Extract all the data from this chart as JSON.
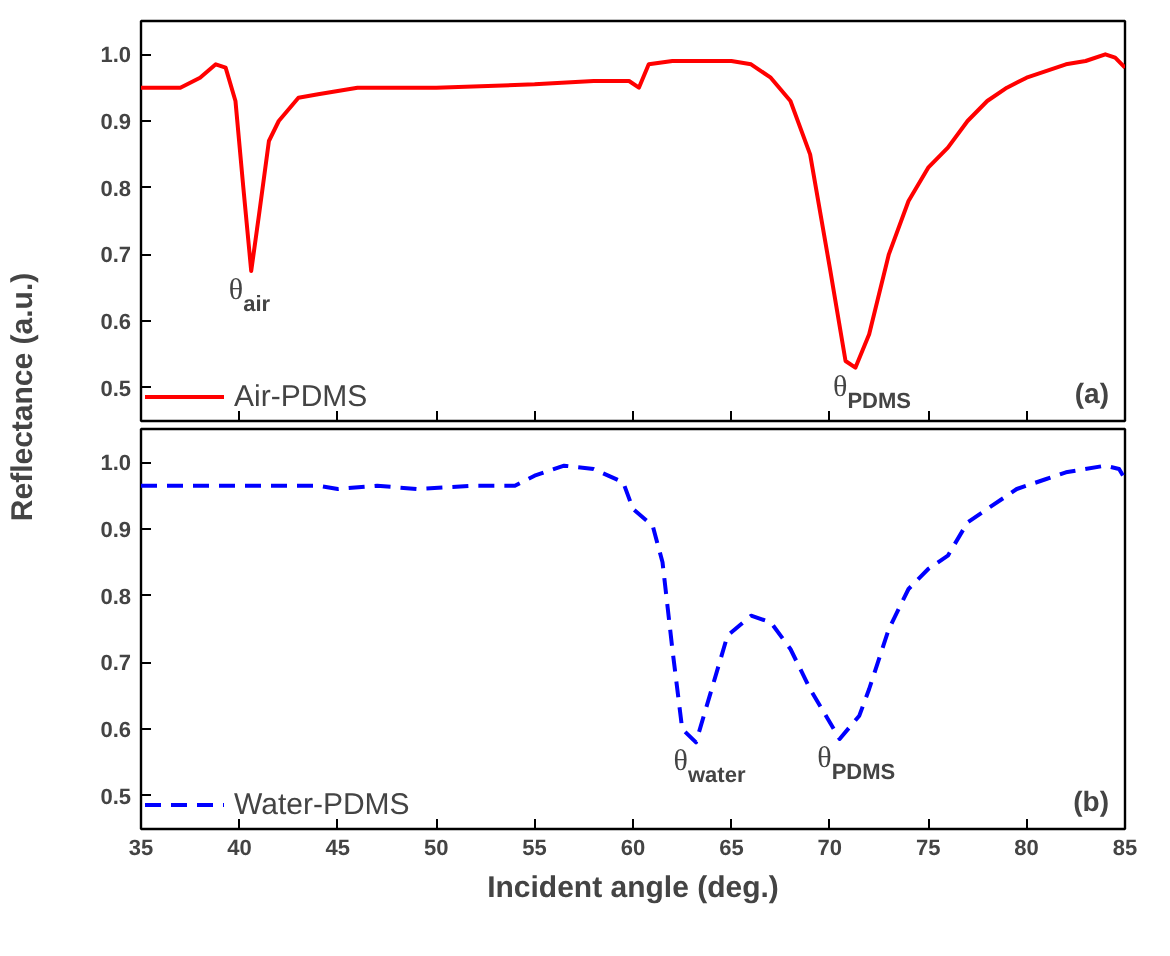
{
  "chart_data": [
    {
      "type": "line",
      "ylabel": "Reflectance (a.u.)",
      "xlim": [
        35,
        85
      ],
      "xticks": [
        35,
        40,
        45,
        50,
        55,
        60,
        65,
        70,
        75,
        80,
        85
      ],
      "ylim": [
        0.45,
        1.05
      ],
      "yticks": [
        0.5,
        0.6,
        0.7,
        0.8,
        0.9,
        {
          "value": 1,
          "label": "1.0"
        }
      ],
      "tick_labels": "y",
      "legend": "bottom left",
      "grid": false,
      "line_style": "solid",
      "annotations": [
        {
          "text": "θ$_{air}$",
          "x": 40.6,
          "y": 0.675
        },
        {
          "text": "θ$_{PDMS}$",
          "x": 71.3,
          "y": 0.53
        },
        "(a)"
      ],
      "series": [
        {
          "name": "Air-PDMS",
          "color": "#ff0000",
          "x": [
            35,
            37,
            38,
            38.8,
            39.3,
            39.8,
            40.2,
            40.6,
            41,
            41.5,
            42,
            43,
            44,
            45,
            46,
            50,
            55,
            58,
            59.8,
            60.3,
            60.8,
            62,
            65,
            66,
            67,
            68,
            69,
            70,
            70.8,
            71.3,
            72,
            73,
            74,
            75,
            76,
            77,
            78,
            79,
            80,
            82,
            83,
            84,
            84.5,
            85
          ],
          "values": [
            0.95,
            0.95,
            0.965,
            0.985,
            0.98,
            0.93,
            0.8,
            0.675,
            0.76,
            0.87,
            0.9,
            0.935,
            0.94,
            0.945,
            0.95,
            0.95,
            0.955,
            0.96,
            0.96,
            0.95,
            0.985,
            0.99,
            0.99,
            0.985,
            0.965,
            0.93,
            0.85,
            0.68,
            0.54,
            0.53,
            0.58,
            0.7,
            0.78,
            0.83,
            0.86,
            0.9,
            0.93,
            0.95,
            0.965,
            0.985,
            0.99,
            1.0,
            0.995,
            0.98
          ]
        }
      ]
    },
    {
      "type": "line",
      "xlabel": "Incident angle (deg.)",
      "xlim": [
        35,
        85
      ],
      "xticks": [
        35,
        40,
        45,
        50,
        55,
        60,
        65,
        70,
        75,
        80,
        85
      ],
      "ylim": [
        0.45,
        1.05
      ],
      "yticks": [
        0.5,
        0.6,
        0.7,
        0.8,
        0.9,
        {
          "value": 1,
          "label": "1.0"
        }
      ],
      "legend": "bottom left",
      "grid": false,
      "line_style": "dashed",
      "annotations": [
        {
          "text": "θ$_{water}$",
          "x": 63.2,
          "y": 0.58
        },
        {
          "text": "θ$_{PDMS}$",
          "x": 70.5,
          "y": 0.585
        },
        "(b)"
      ],
      "series": [
        {
          "name": "Water-PDMS",
          "color": "#0000ff",
          "x": [
            35,
            44,
            45,
            47,
            49,
            52,
            54,
            55,
            56.5,
            58,
            59.5,
            60,
            61,
            61.5,
            62,
            62.5,
            63.2,
            64,
            64.8,
            66,
            67,
            68,
            69,
            70.5,
            71.5,
            72,
            73,
            74,
            75,
            76,
            77,
            78,
            79.5,
            81,
            82,
            84,
            84.7,
            85
          ],
          "values": [
            0.965,
            0.965,
            0.96,
            0.965,
            0.96,
            0.965,
            0.965,
            0.98,
            0.995,
            0.99,
            0.97,
            0.93,
            0.905,
            0.85,
            0.72,
            0.6,
            0.58,
            0.66,
            0.74,
            0.77,
            0.76,
            0.72,
            0.66,
            0.585,
            0.62,
            0.66,
            0.75,
            0.81,
            0.84,
            0.86,
            0.91,
            0.93,
            0.96,
            0.975,
            0.985,
            0.995,
            0.99,
            0.975
          ]
        }
      ]
    }
  ]
}
